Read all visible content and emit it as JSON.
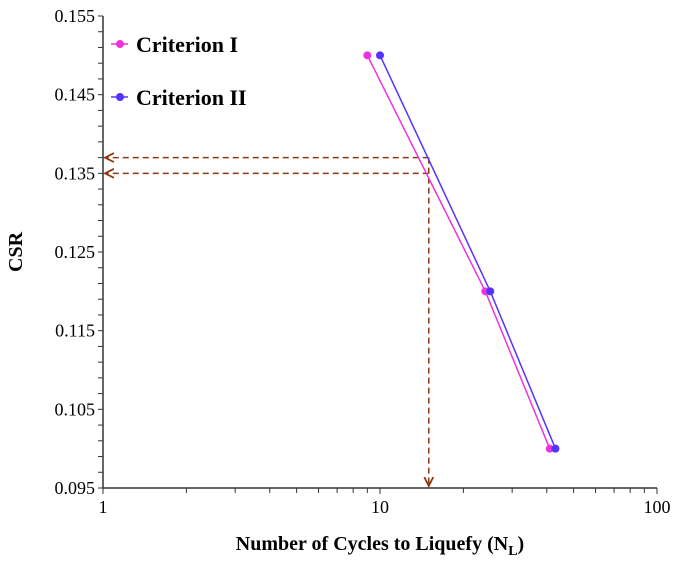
{
  "chart_data": {
    "type": "line",
    "xlabel": "Number of Cycles to Liquefy (N",
    "xlabel_sub": "L",
    "xlabel_end": ")",
    "ylabel": "CSR",
    "xscale": "log",
    "xlim": [
      1,
      100
    ],
    "ylim": [
      0.095,
      0.155
    ],
    "xticks": [
      "1",
      "10",
      "100"
    ],
    "yticks": [
      "0.095",
      "0.105",
      "0.115",
      "0.125",
      "0.135",
      "0.145",
      "0.155"
    ],
    "grid": false,
    "legend_position": "top-left",
    "series": [
      {
        "name": "Criterion I",
        "color": "#ee33dd",
        "x": [
          9,
          24,
          41
        ],
        "y": [
          0.15,
          0.12,
          0.1
        ]
      },
      {
        "name": "Criterion II",
        "color": "#5533ff",
        "x": [
          10,
          25,
          43
        ],
        "y": [
          0.15,
          0.12,
          0.1
        ]
      }
    ],
    "annotations": {
      "color": "#8b3a0f",
      "horizontal_dashed_y": [
        0.137,
        0.135
      ],
      "vertical_dashed_x": 15
    }
  }
}
